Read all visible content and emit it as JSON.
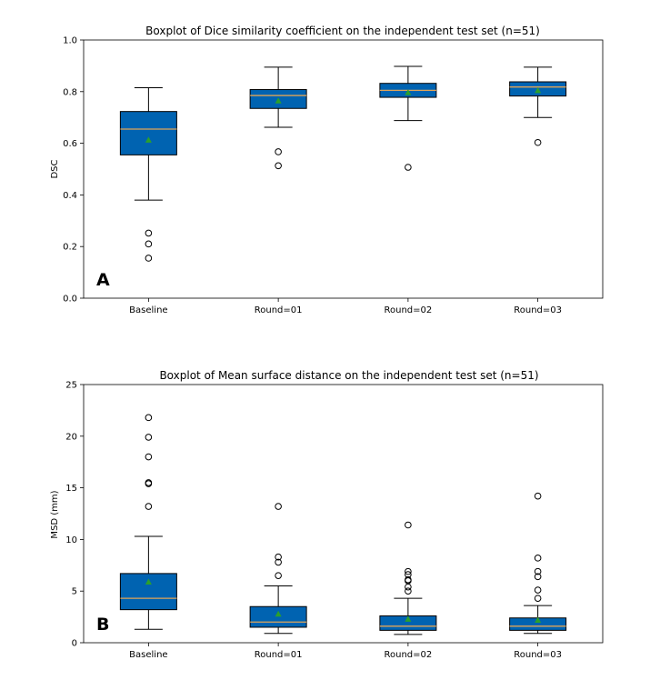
{
  "chart_data": [
    {
      "type": "box",
      "panel_label": "A",
      "title": "Boxplot of Dice similarity coefficient on the independent test set (n=51)",
      "xlabel": "",
      "ylabel": "DSC",
      "ylim": [
        0.0,
        1.0
      ],
      "yticks": [
        0.0,
        0.2,
        0.4,
        0.6,
        0.8,
        1.0
      ],
      "ytick_labels": [
        "0.0",
        "0.2",
        "0.4",
        "0.6",
        "0.8",
        "1.0"
      ],
      "categories": [
        "Baseline",
        "Round=01",
        "Round=02",
        "Round=03"
      ],
      "boxes": [
        {
          "whisker_low": 0.38,
          "q1": 0.555,
          "median": 0.655,
          "q3": 0.723,
          "whisker_high": 0.815,
          "mean": 0.613,
          "outliers": [
            0.252,
            0.21,
            0.155
          ]
        },
        {
          "whisker_low": 0.662,
          "q1": 0.735,
          "median": 0.785,
          "q3": 0.808,
          "whisker_high": 0.895,
          "mean": 0.765,
          "outliers": [
            0.567,
            0.513
          ]
        },
        {
          "whisker_low": 0.688,
          "q1": 0.778,
          "median": 0.805,
          "q3": 0.832,
          "whisker_high": 0.898,
          "mean": 0.797,
          "outliers": [
            0.507
          ]
        },
        {
          "whisker_low": 0.7,
          "q1": 0.783,
          "median": 0.818,
          "q3": 0.838,
          "whisker_high": 0.895,
          "mean": 0.805,
          "outliers": [
            0.603
          ]
        }
      ],
      "colors": {
        "box_fill": "#0063b1",
        "box_edge": "#000000",
        "median": "#e0a458",
        "mean": "#2ca02c",
        "outlier": "#000000"
      }
    },
    {
      "type": "box",
      "panel_label": "B",
      "title": "Boxplot of Mean surface distance on the independent test set (n=51)",
      "xlabel": "",
      "ylabel": "MSD (mm)",
      "ylim": [
        0,
        25
      ],
      "yticks": [
        0,
        5,
        10,
        15,
        20,
        25
      ],
      "ytick_labels": [
        "0",
        "5",
        "10",
        "15",
        "20",
        "25"
      ],
      "categories": [
        "Baseline",
        "Round=01",
        "Round=02",
        "Round=03"
      ],
      "boxes": [
        {
          "whisker_low": 1.3,
          "q1": 3.2,
          "median": 4.3,
          "q3": 6.7,
          "whisker_high": 10.3,
          "mean": 5.9,
          "outliers": [
            13.2,
            15.4,
            15.5,
            18.0,
            19.9,
            21.8
          ]
        },
        {
          "whisker_low": 0.9,
          "q1": 1.5,
          "median": 2.0,
          "q3": 3.5,
          "whisker_high": 5.5,
          "mean": 2.8,
          "outliers": [
            6.5,
            7.8,
            8.3,
            13.2
          ]
        },
        {
          "whisker_low": 0.8,
          "q1": 1.2,
          "median": 1.6,
          "q3": 2.6,
          "whisker_high": 4.3,
          "mean": 2.3,
          "outliers": [
            5.0,
            5.4,
            6.0,
            6.1,
            6.6,
            6.9,
            11.4
          ]
        },
        {
          "whisker_low": 0.9,
          "q1": 1.2,
          "median": 1.6,
          "q3": 2.4,
          "whisker_high": 3.6,
          "mean": 2.2,
          "outliers": [
            4.3,
            5.1,
            6.4,
            6.9,
            8.2,
            14.2
          ]
        }
      ],
      "colors": {
        "box_fill": "#0063b1",
        "box_edge": "#000000",
        "median": "#e0a458",
        "mean": "#2ca02c",
        "outlier": "#000000"
      }
    }
  ]
}
